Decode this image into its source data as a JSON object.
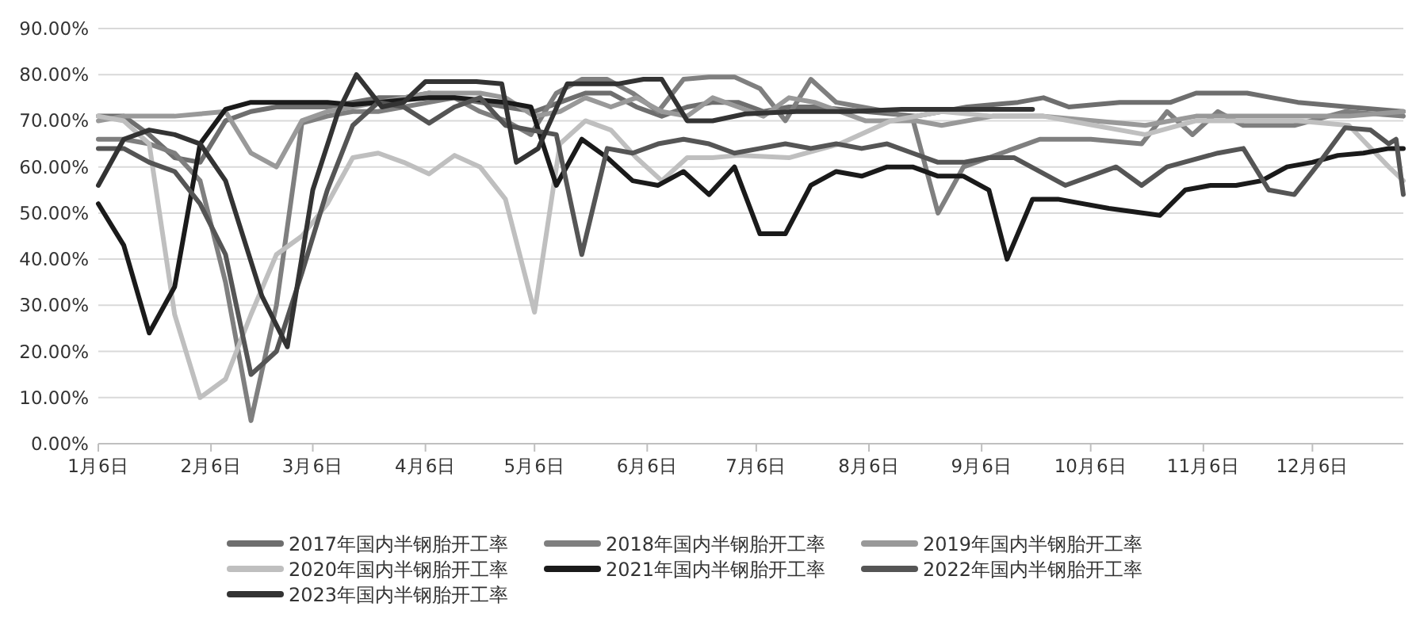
{
  "chart_data": {
    "type": "line",
    "xlim": [
      "--01-06",
      "--12-31"
    ],
    "ylim": [
      0,
      90
    ],
    "xticks": [
      {
        "value": "--01-06",
        "label": "1月6日"
      },
      {
        "value": "--02-06",
        "label": "2月6日"
      },
      {
        "value": "--03-06",
        "label": "3月6日"
      },
      {
        "value": "--04-06",
        "label": "4月6日"
      },
      {
        "value": "--05-06",
        "label": "5月6日"
      },
      {
        "value": "--06-06",
        "label": "6月6日"
      },
      {
        "value": "--07-06",
        "label": "7月6日"
      },
      {
        "value": "--08-06",
        "label": "8月6日"
      },
      {
        "value": "--09-06",
        "label": "9月6日"
      },
      {
        "value": "--10-06",
        "label": "10月6日"
      },
      {
        "value": "--11-06",
        "label": "11月6日"
      },
      {
        "value": "--12-06",
        "label": "12月6日"
      }
    ],
    "yticks": [
      {
        "value": 0,
        "label": "0.00%"
      },
      {
        "value": 10,
        "label": "10.00%"
      },
      {
        "value": 20,
        "label": "20.00%"
      },
      {
        "value": 30,
        "label": "30.00%"
      },
      {
        "value": 40,
        "label": "40.00%"
      },
      {
        "value": 50,
        "label": "50.00%"
      },
      {
        "value": 60,
        "label": "60.00%"
      },
      {
        "value": 70,
        "label": "70.00%"
      },
      {
        "value": 80,
        "label": "80.00%"
      },
      {
        "value": 90,
        "label": "90.00%"
      }
    ],
    "grid": "y",
    "legend": "bottom",
    "marker": "none",
    "line_style": "solid",
    "series": [
      {
        "name": "2017年国内半钢胎开工率",
        "color": "#6e6e6e",
        "x": [
          "--01-06",
          "--01-13",
          "--01-20",
          "--01-27",
          "--02-03",
          "--02-10",
          "--02-17",
          "--02-24",
          "--03-03",
          "--03-10",
          "--03-17",
          "--03-24",
          "--03-31",
          "--04-07",
          "--04-14",
          "--04-21",
          "--04-28",
          "--05-06",
          "--05-13",
          "--05-20",
          "--05-27",
          "--06-03",
          "--06-10",
          "--06-17",
          "--06-24",
          "--07-01",
          "--07-08",
          "--07-15",
          "--07-22",
          "--08-05",
          "--08-19",
          "--09-02",
          "--09-16",
          "--09-23",
          "--09-30",
          "--10-14",
          "--10-28",
          "--11-04",
          "--11-18",
          "--11-25",
          "--12-02",
          "--12-16",
          "--12-31"
        ],
        "values": [
          71,
          71,
          67,
          62,
          61,
          70,
          72,
          73,
          73,
          73,
          74,
          75,
          75,
          76,
          75,
          74,
          73,
          72,
          74,
          76,
          76,
          73,
          71,
          73,
          74,
          74,
          72,
          73,
          73,
          72,
          71,
          73,
          74,
          75,
          73,
          74,
          74,
          76,
          76,
          75,
          74,
          73,
          72
        ]
      },
      {
        "name": "2018年国内半钢胎开工率",
        "color": "#7f7f7f",
        "x": [
          "--01-06",
          "--01-13",
          "--01-20",
          "--01-27",
          "--02-03",
          "--02-10",
          "--02-17",
          "--02-24",
          "--03-03",
          "--03-10",
          "--03-17",
          "--03-24",
          "--03-31",
          "--04-07",
          "--04-14",
          "--04-21",
          "--04-28",
          "--05-05",
          "--05-12",
          "--05-19",
          "--05-26",
          "--06-02",
          "--06-09",
          "--06-16",
          "--06-23",
          "--06-30",
          "--07-07",
          "--07-14",
          "--07-21",
          "--07-28",
          "--08-04",
          "--08-11",
          "--08-18",
          "--08-25",
          "--09-01",
          "--09-08",
          "--09-22",
          "--10-06",
          "--10-20",
          "--10-27",
          "--11-03",
          "--11-10",
          "--11-17",
          "--12-01",
          "--12-15",
          "--12-31"
        ],
        "values": [
          66,
          66,
          65,
          63,
          57,
          35,
          5,
          30,
          69.5,
          71,
          72,
          72,
          73,
          74,
          75,
          72,
          70,
          67,
          76,
          79,
          79,
          76,
          72,
          79,
          79.5,
          79.5,
          77,
          70,
          79,
          74,
          73,
          72,
          70.5,
          50,
          60,
          62,
          66,
          66,
          65,
          72,
          67,
          72,
          69,
          69,
          72,
          71
        ]
      },
      {
        "name": "2019年国内半钢胎开工率",
        "color": "#999999",
        "x": [
          "--01-06",
          "--01-13",
          "--01-20",
          "--01-27",
          "--02-03",
          "--02-10",
          "--02-17",
          "--02-24",
          "--03-03",
          "--03-10",
          "--03-17",
          "--03-24",
          "--03-31",
          "--04-07",
          "--04-14",
          "--04-21",
          "--04-28",
          "--05-06",
          "--05-13",
          "--05-20",
          "--05-27",
          "--06-03",
          "--06-10",
          "--06-17",
          "--06-24",
          "--07-01",
          "--07-08",
          "--07-15",
          "--07-22",
          "--07-29",
          "--08-05",
          "--08-12",
          "--08-19",
          "--08-26",
          "--09-09",
          "--09-23",
          "--10-07",
          "--10-21",
          "--11-04",
          "--11-18",
          "--12-02",
          "--12-16",
          "--12-31"
        ],
        "values": [
          70,
          71,
          71,
          71,
          71.5,
          72,
          63,
          60,
          70,
          72,
          73,
          74,
          75,
          76,
          76,
          76,
          75,
          71,
          72,
          75,
          73,
          75,
          72,
          71,
          75,
          73,
          71,
          75,
          74,
          72,
          70,
          70,
          70,
          69,
          71,
          71,
          70,
          69,
          71,
          71,
          71,
          71,
          72
        ]
      },
      {
        "name": "2020年国内半钢胎开工率",
        "color": "#bfbfbf",
        "x": [
          "--01-06",
          "--01-13",
          "--01-20",
          "--01-27",
          "--02-03",
          "--02-10",
          "--02-17",
          "--02-24",
          "--03-03",
          "--03-10",
          "--03-17",
          "--03-24",
          "--03-31",
          "--04-07",
          "--04-14",
          "--04-21",
          "--04-28",
          "--05-06",
          "--05-13",
          "--05-20",
          "--05-27",
          "--06-03",
          "--06-10",
          "--06-17",
          "--06-24",
          "--07-01",
          "--07-15",
          "--07-29",
          "--08-12",
          "--08-26",
          "--09-09",
          "--09-23",
          "--10-07",
          "--10-21",
          "--11-04",
          "--11-18",
          "--12-02",
          "--12-16",
          "--12-27",
          "--12-31"
        ],
        "values": [
          71,
          70,
          65,
          28,
          10,
          14,
          28,
          41,
          45,
          52,
          62,
          63,
          61,
          58.5,
          62.5,
          60,
          53,
          28.5,
          65,
          70,
          68,
          62,
          57,
          62,
          62,
          62.5,
          62,
          65,
          70,
          72,
          71,
          71,
          69,
          67,
          70,
          70,
          70,
          69,
          60,
          57
        ]
      },
      {
        "name": "2021年国内半钢胎开工率",
        "color": "#1a1a1a",
        "x": [
          "--01-06",
          "--01-13",
          "--01-20",
          "--01-27",
          "--02-03",
          "--02-10",
          "--02-17",
          "--02-24",
          "--03-03",
          "--03-10",
          "--03-17",
          "--03-24",
          "--03-31",
          "--04-07",
          "--04-14",
          "--04-21",
          "--04-28",
          "--05-05",
          "--05-12",
          "--05-19",
          "--05-26",
          "--06-02",
          "--06-09",
          "--06-16",
          "--06-23",
          "--06-30",
          "--07-07",
          "--07-14",
          "--07-21",
          "--07-28",
          "--08-04",
          "--08-11",
          "--08-18",
          "--08-25",
          "--09-01",
          "--09-08",
          "--09-13",
          "--09-20",
          "--09-27",
          "--10-11",
          "--10-25",
          "--11-01",
          "--11-08",
          "--11-15",
          "--11-22",
          "--11-29",
          "--12-06",
          "--12-13",
          "--12-20",
          "--12-27",
          "--12-31"
        ],
        "values": [
          52,
          43,
          24,
          34,
          65,
          72.5,
          74,
          74,
          74,
          74,
          73.5,
          74,
          74.5,
          75,
          75,
          74.5,
          74,
          73,
          56,
          66,
          62,
          57,
          56,
          59,
          54,
          60,
          45.5,
          45.5,
          56,
          59,
          58,
          60,
          60,
          58,
          58,
          55,
          40,
          53,
          53,
          51,
          49.5,
          55,
          56,
          56,
          57,
          60,
          61,
          62.5,
          63,
          64,
          64
        ]
      },
      {
        "name": "2022年国内半钢胎开工率",
        "color": "#555555",
        "x": [
          "--01-06",
          "--01-13",
          "--01-20",
          "--01-27",
          "--02-03",
          "--02-10",
          "--02-17",
          "--02-24",
          "--03-03",
          "--03-10",
          "--03-17",
          "--03-24",
          "--03-31",
          "--04-07",
          "--04-14",
          "--04-21",
          "--04-28",
          "--05-05",
          "--05-12",
          "--05-19",
          "--05-26",
          "--06-02",
          "--06-09",
          "--06-16",
          "--06-23",
          "--06-30",
          "--07-07",
          "--07-14",
          "--07-21",
          "--07-28",
          "--08-04",
          "--08-11",
          "--08-18",
          "--08-25",
          "--09-01",
          "--09-08",
          "--09-15",
          "--09-29",
          "--10-13",
          "--10-20",
          "--10-27",
          "--11-10",
          "--11-17",
          "--11-24",
          "--12-01",
          "--12-08",
          "--12-15",
          "--12-22",
          "--12-27",
          "--12-29",
          "--12-31"
        ],
        "values": [
          64,
          64,
          61,
          59,
          52,
          41,
          15,
          20,
          37,
          55,
          69,
          74,
          73,
          69.5,
          73,
          75,
          69,
          68,
          67,
          41,
          64,
          63,
          65,
          66,
          65,
          63,
          64,
          65,
          64,
          65,
          64,
          65,
          63,
          61,
          61,
          62,
          62,
          56,
          60,
          56,
          60,
          63,
          64,
          55,
          54,
          61,
          68.5,
          68,
          65,
          66,
          54
        ]
      },
      {
        "name": "2023年国内半钢胎开工率",
        "color": "#333333",
        "x": [
          "--01-06",
          "--01-13",
          "--01-20",
          "--01-27",
          "--02-03",
          "--02-10",
          "--02-20",
          "--02-27",
          "--03-06",
          "--03-13",
          "--03-18",
          "--03-25",
          "--03-31",
          "--04-06",
          "--04-20",
          "--04-27",
          "--05-01",
          "--05-07",
          "--05-15",
          "--05-22",
          "--05-29",
          "--06-05",
          "--06-10",
          "--06-17",
          "--06-24",
          "--07-03",
          "--07-17",
          "--08-01",
          "--08-15",
          "--09-01",
          "--09-20"
        ],
        "values": [
          56,
          66,
          68,
          67,
          65,
          57,
          32,
          21,
          55,
          72,
          80,
          73,
          74,
          78.5,
          78.5,
          78,
          61,
          64,
          78,
          78,
          78,
          79,
          79,
          70,
          70,
          71.5,
          72,
          72,
          72.5,
          72.5,
          72.5
        ]
      }
    ]
  }
}
